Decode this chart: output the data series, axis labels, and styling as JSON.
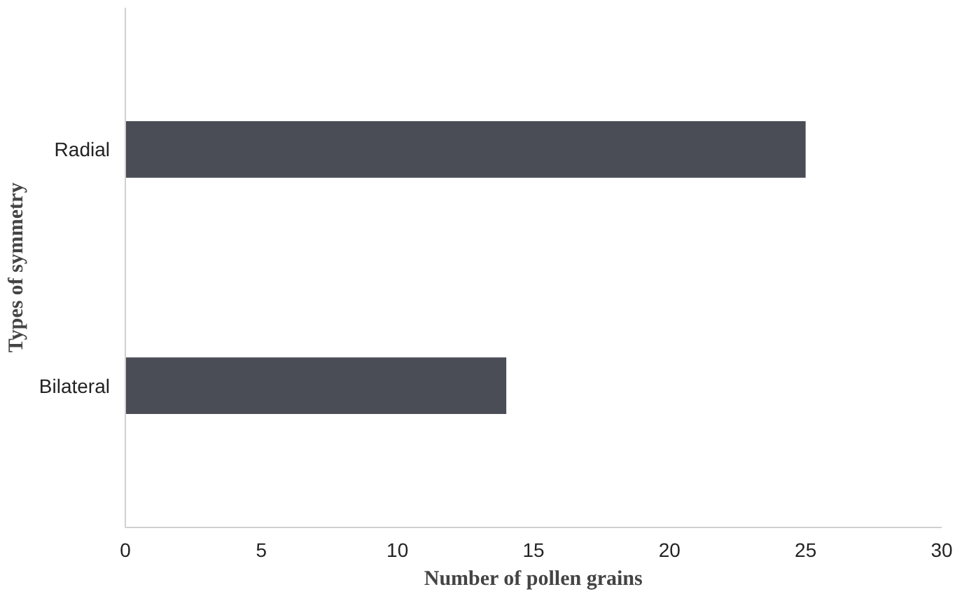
{
  "chart_data": {
    "type": "bar",
    "orientation": "horizontal",
    "xlabel": "Number of pollen grains",
    "ylabel": "Types of symmetry",
    "categories": [
      "Radial",
      "Bilateral"
    ],
    "values": [
      25,
      14
    ],
    "color": "#4a4d56",
    "xlim": [
      0,
      30
    ],
    "xticks": [
      0,
      5,
      10,
      15,
      20,
      25,
      30
    ],
    "grid": false
  }
}
